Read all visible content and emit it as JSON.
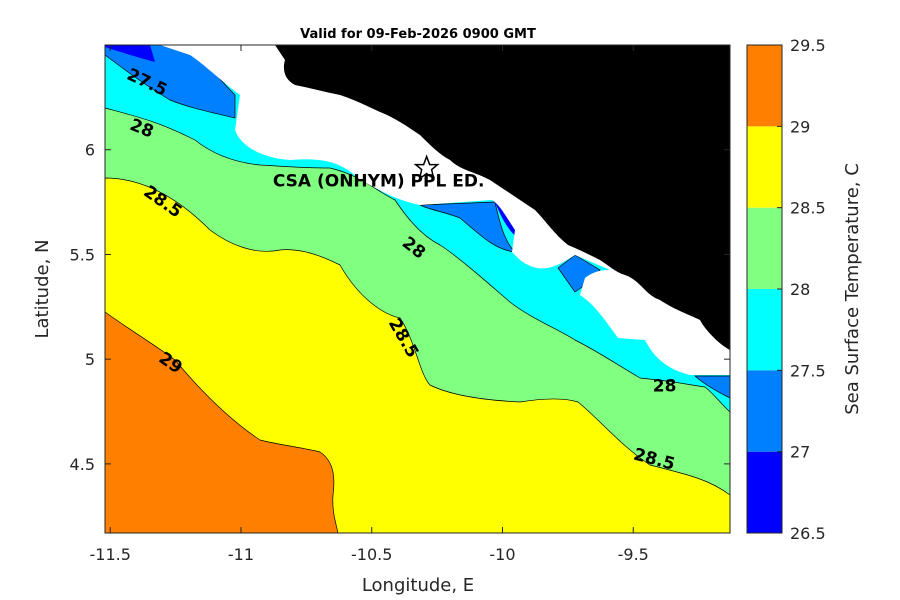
{
  "chart_data": {
    "type": "contour",
    "title": "Valid for 09-Feb-2026 0900 GMT",
    "xlabel": "Longitude, E",
    "ylabel": "Latitude, N",
    "xlim": [
      -11.52,
      -9.13
    ],
    "ylim": [
      4.17,
      6.5
    ],
    "xticks": [
      -11.5,
      -11,
      -10.5,
      -10,
      -9.5
    ],
    "xtick_labels": [
      "-11.5",
      "-11",
      "-10.5",
      "-10",
      "-9.5"
    ],
    "yticks": [
      4.5,
      5,
      5.5,
      6
    ],
    "ytick_labels": [
      "4.5",
      "5",
      "5.5",
      "6"
    ],
    "colorbar": {
      "label": "Sea Surface Temperature, C",
      "levels": [
        26.5,
        27,
        27.5,
        28,
        28.5,
        29,
        29.5
      ],
      "level_labels": [
        "26.5",
        "27",
        "27.5",
        "28",
        "28.5",
        "29",
        "29.5"
      ],
      "colors": [
        "#0000ff",
        "#0080ff",
        "#00ffff",
        "#80ff80",
        "#ffff00",
        "#ff8000"
      ]
    },
    "land_color": "#000000",
    "masked_color": "#ffffff",
    "contour_labels": [
      {
        "text": "27.5",
        "lon": -11.36,
        "lat": 6.32,
        "angle": 25
      },
      {
        "text": "28",
        "lon": -11.38,
        "lat": 6.1,
        "angle": 22
      },
      {
        "text": "28.5",
        "lon": -11.3,
        "lat": 5.75,
        "angle": 35
      },
      {
        "text": "28",
        "lon": -10.34,
        "lat": 5.53,
        "angle": 38
      },
      {
        "text": "28.5",
        "lon": -10.38,
        "lat": 5.1,
        "angle": 60
      },
      {
        "text": "29",
        "lon": -11.27,
        "lat": 4.98,
        "angle": 35
      },
      {
        "text": "28",
        "lon": -9.38,
        "lat": 4.87,
        "angle": 0
      },
      {
        "text": "28.5",
        "lon": -9.42,
        "lat": 4.52,
        "angle": 15
      }
    ],
    "station": {
      "name": "CSA (ONHYM) PPL ED.",
      "lon": -10.29,
      "lat": 5.91,
      "marker": "star"
    }
  }
}
